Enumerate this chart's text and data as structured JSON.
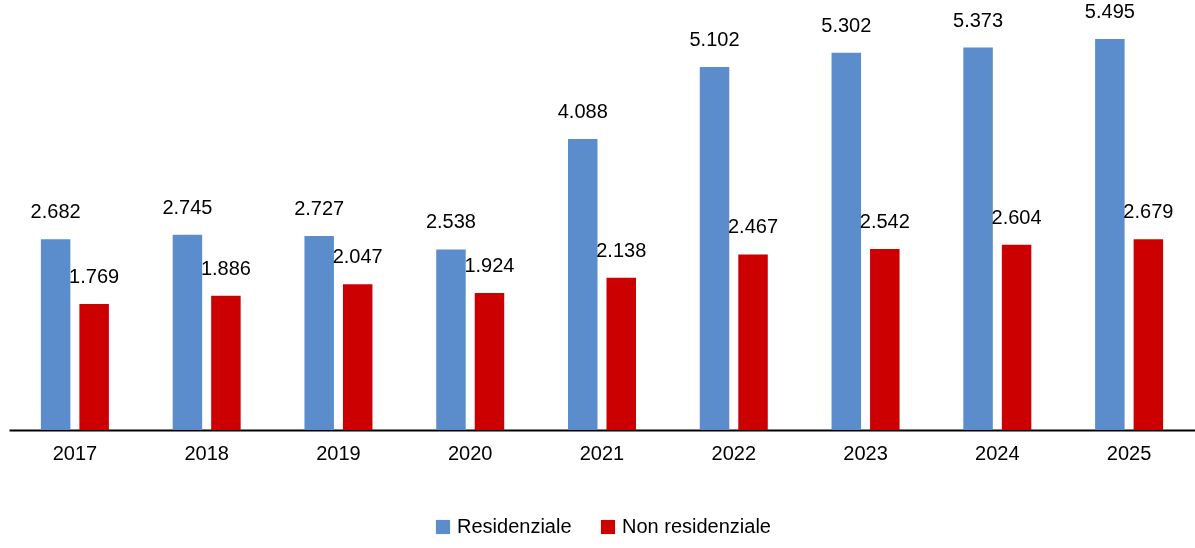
{
  "chart_data": {
    "type": "bar",
    "categories": [
      "2017",
      "2018",
      "2019",
      "2020",
      "2021",
      "2022",
      "2023",
      "2024",
      "2025"
    ],
    "series": [
      {
        "name": "Residenziale",
        "color": "#5b8ccc",
        "values": [
          2682,
          2745,
          2727,
          2538,
          4088,
          5102,
          5302,
          5373,
          5495
        ],
        "value_labels": [
          "2.682",
          "2.745",
          "2.727",
          "2.538",
          "4.088",
          "5.102",
          "5.302",
          "5.373",
          "5.495"
        ]
      },
      {
        "name": "Non residenziale",
        "color": "#cc0000",
        "values": [
          1769,
          1886,
          2047,
          1924,
          2138,
          2467,
          2542,
          2604,
          2679
        ],
        "value_labels": [
          "1.769",
          "1.886",
          "2.047",
          "1.924",
          "2.138",
          "2.467",
          "2.542",
          "2.604",
          "2.679"
        ]
      }
    ],
    "ylim": [
      0,
      6000
    ],
    "tick_labels": "x",
    "legend": "bottom"
  }
}
